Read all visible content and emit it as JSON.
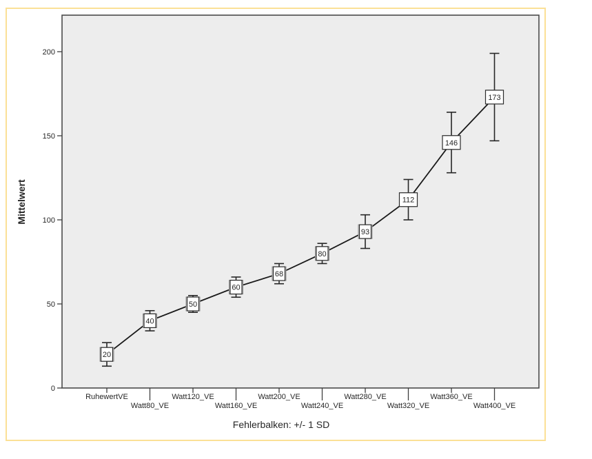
{
  "chart_data": {
    "type": "line",
    "title": "",
    "ylabel": "Mittelwert",
    "xlabel": "",
    "caption": "Fehlerbalken: +/- 1 SD",
    "categories": [
      "RuhewertVE",
      "Watt80_VE",
      "Watt120_VE",
      "Watt160_VE",
      "Watt200_VE",
      "Watt240_VE",
      "Watt280_VE",
      "Watt320_VE",
      "Watt360_VE",
      "Watt400_VE"
    ],
    "series": [
      {
        "name": "Mittelwert",
        "values": [
          20,
          40,
          50,
          60,
          68,
          80,
          93,
          112,
          146,
          173
        ],
        "sd": [
          7,
          6,
          5,
          6,
          6,
          6,
          10,
          12,
          18,
          26
        ]
      }
    ],
    "point_labels": [
      "20",
      "40",
      "50",
      "60",
      "68",
      "80",
      "93",
      "112",
      "146",
      "173"
    ],
    "yticks": [
      0,
      50,
      100,
      150,
      200
    ],
    "ytick_labels": [
      "0",
      "50",
      "100",
      "150",
      "200"
    ],
    "ylim": [
      0,
      222
    ],
    "error_bars": "+/- 1 SD",
    "grid": false,
    "legend": "none",
    "label_stagger_rows": 2,
    "colors": {
      "plot_bg": "#ededed",
      "frame": "#4a4a4a",
      "line": "#1a1a1a",
      "error_bar": "#262626",
      "tick": "#3f3f3f",
      "label_box_bg": "#ffffff",
      "label_box_border": "#2b2b2b",
      "marker": "#8c8c8c",
      "marker_fill": "#e6e6e6",
      "text": "#262626",
      "selection_border": "#fbe096",
      "page_bg": "#ffffff"
    }
  }
}
